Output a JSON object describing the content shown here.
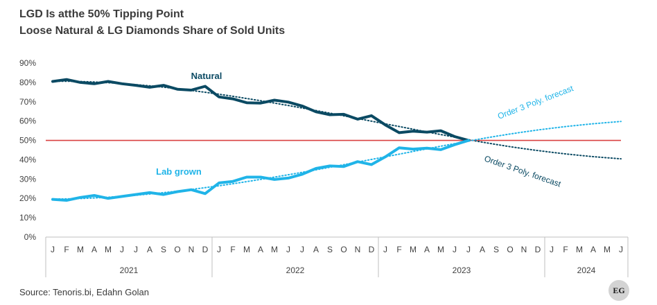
{
  "title_line1": "LGD Is atthe 50% Tipping Point",
  "title_line2": "Loose Natural & LG Diamonds Share of Sold Units",
  "source": "Source: Tenoris.bi, Edahn Golan",
  "logo_text": "EG",
  "chart_data": {
    "type": "line",
    "y_axis": {
      "min": 0,
      "max": 90,
      "step": 10,
      "format": "percent"
    },
    "month_labels": [
      "J",
      "F",
      "M",
      "A",
      "M",
      "J",
      "J",
      "A",
      "S",
      "O",
      "N",
      "D"
    ],
    "years": [
      "2021",
      "2022",
      "2023",
      "2024"
    ],
    "months_total": 42,
    "grid": false,
    "series": [
      {
        "name": "Natural",
        "color": "#0b4a63",
        "values": [
          80.5,
          81.5,
          80,
          79.3,
          80.5,
          79.3,
          78.5,
          77.5,
          78.5,
          76.5,
          76,
          78,
          72.5,
          71.5,
          69.5,
          69.3,
          70.8,
          69.8,
          67.8,
          64.8,
          63.3,
          63.5,
          61,
          62.8,
          58,
          54,
          54.8,
          54.3,
          55,
          52,
          50
        ]
      },
      {
        "name": "Lab grown",
        "color": "#20b4e8",
        "values": [
          19.5,
          19,
          20.5,
          21.5,
          20,
          21,
          22,
          23,
          22,
          23.5,
          24.5,
          22.5,
          28,
          28.8,
          31,
          31,
          29.8,
          30.5,
          32.5,
          35.5,
          36.8,
          36.5,
          39,
          37.5,
          41.5,
          46.2,
          45.5,
          46,
          45.2,
          47.8,
          50
        ]
      }
    ],
    "trendlines": [
      {
        "series": "Natural",
        "label": "Order 3 Poly. forecast",
        "color": "#0b4a63",
        "style": "dotted",
        "end_value": 40.5
      },
      {
        "series": "Lab grown",
        "label": "Order 3 Poly. forecast",
        "color": "#20b4e8",
        "style": "dotted",
        "end_value": 59.8
      }
    ],
    "reference_line": {
      "value": 50,
      "color": "#d94040"
    }
  }
}
